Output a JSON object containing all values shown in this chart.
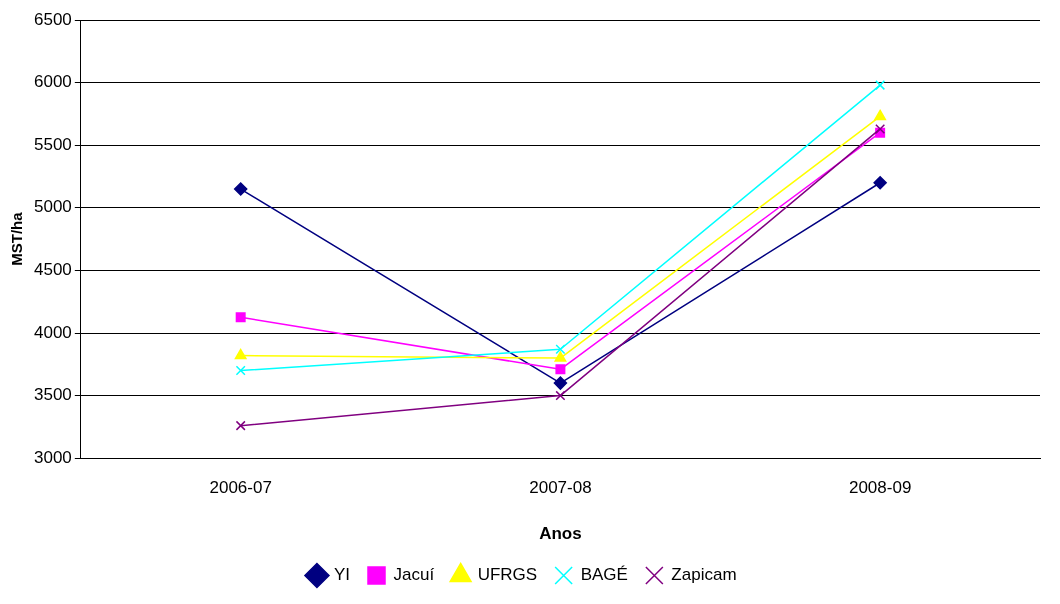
{
  "chart_data": {
    "type": "line",
    "xlabel": "Anos",
    "ylabel": "MST/ha",
    "categories": [
      "2006-07",
      "2007-08",
      "2008-09"
    ],
    "series": [
      {
        "name": "YI",
        "color": "#000080",
        "marker": "diamond",
        "values": [
          5150,
          3600,
          5200
        ]
      },
      {
        "name": "Jacuí",
        "color": "#ff00ff",
        "marker": "square",
        "values": [
          4125,
          3710,
          5600
        ]
      },
      {
        "name": "UFRGS",
        "color": "#ffff00",
        "marker": "triangle",
        "values": [
          3820,
          3800,
          5730
        ]
      },
      {
        "name": "BAGÉ",
        "color": "#00ffff",
        "marker": "cross",
        "values": [
          3700,
          3870,
          5980
        ]
      },
      {
        "name": "Zapicam",
        "color": "#800080",
        "marker": "cross",
        "values": [
          3260,
          3500,
          5630
        ]
      }
    ],
    "ylim": [
      3000,
      6500
    ],
    "yticks": [
      3000,
      3500,
      4000,
      4500,
      5000,
      5500,
      6000,
      6500
    ],
    "grid": "y",
    "legend": "bottom",
    "line_style": "solid"
  }
}
